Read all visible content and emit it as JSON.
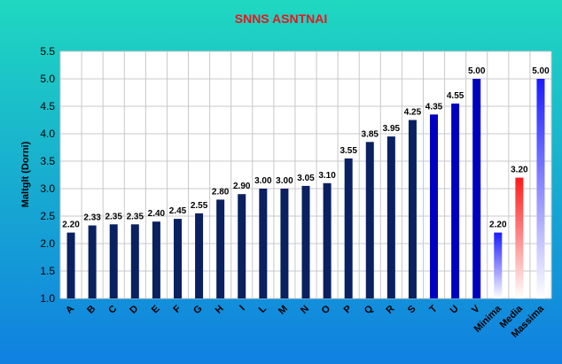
{
  "colors": {
    "title": "#e8161e",
    "bar": "#0a2060",
    "bar_max_top": "#0000c0",
    "minima_top": "#1a1aff",
    "media_top": "#ff1a1a",
    "massima_top": "#1a1aff",
    "bg_top": "#1fd8c0",
    "bg_bottom": "#1080e0"
  },
  "chart_data": {
    "type": "bar",
    "title": "SNNS ASNTNAI",
    "xlabel": "",
    "ylabel": "Maltglt (Dorni)",
    "ylim": [
      1.0,
      5.5
    ],
    "yticks": [
      "1.0",
      "1.5",
      "2.0",
      "2.5",
      "3.0",
      "3.5",
      "4.0",
      "4.5",
      "5.0",
      "5.5"
    ],
    "grid": true,
    "legend": "none",
    "categories": [
      "A",
      "B",
      "C",
      "D",
      "E",
      "F",
      "G",
      "H",
      "I",
      "L",
      "M",
      "N",
      "O",
      "P",
      "Q",
      "R",
      "S",
      "T",
      "U",
      "V",
      "Minima",
      "Media",
      "Massima"
    ],
    "values": [
      2.2,
      2.33,
      2.35,
      2.35,
      2.4,
      2.45,
      2.55,
      2.8,
      2.9,
      3.0,
      3.0,
      3.05,
      3.1,
      3.55,
      3.85,
      3.95,
      4.25,
      4.35,
      4.55,
      5.0,
      2.2,
      3.2,
      5.0
    ],
    "value_labels": [
      "2.20",
      "2.33",
      "2.35",
      "2.35",
      "2.40",
      "2.45",
      "2.55",
      "2.80",
      "2.90",
      "3.00",
      "3.00",
      "3.05",
      "3.10",
      "3.55",
      "3.85",
      "3.95",
      "4.25",
      "4.35",
      "4.55",
      "5.00",
      "2.20",
      "3.20",
      "5.00"
    ]
  }
}
